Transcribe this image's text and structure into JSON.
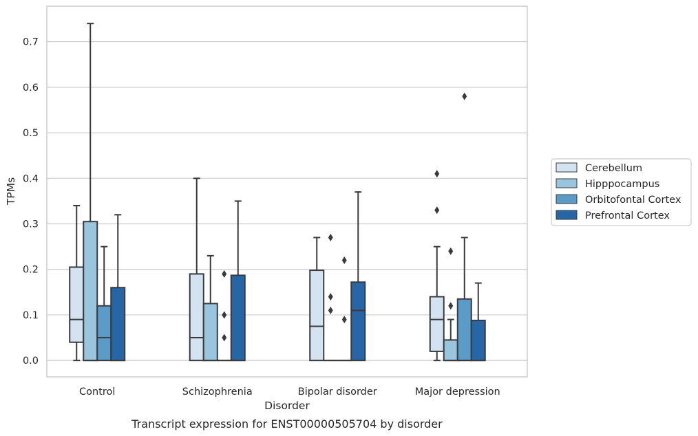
{
  "chart_data": {
    "type": "boxplot",
    "title": "",
    "caption": "Transcript expression for ENST00000505704 by disorder",
    "xlabel": "Disorder",
    "ylabel": "TPMs",
    "ylim": [
      -0.036,
      0.778
    ],
    "yticks": [
      0.0,
      0.1,
      0.2,
      0.3,
      0.4,
      0.5,
      0.6,
      0.7
    ],
    "ytick_labels": [
      "0.0",
      "0.1",
      "0.2",
      "0.3",
      "0.4",
      "0.5",
      "0.6",
      "0.7"
    ],
    "grid": "horizontal",
    "legend_position": "right",
    "categories": [
      "Control",
      "Schizophrenia",
      "Bipolar disorder",
      "Major depression"
    ],
    "series": [
      {
        "name": "Cerebellum",
        "color": "#d4e3f2",
        "boxes": [
          {
            "q1": 0.04,
            "median": 0.09,
            "q3": 0.205,
            "whislo": 0.0,
            "whishi": 0.34,
            "fliers": []
          },
          {
            "q1": 0.0,
            "median": 0.05,
            "q3": 0.19,
            "whislo": 0.0,
            "whishi": 0.4,
            "fliers": []
          },
          {
            "q1": 0.0,
            "median": 0.075,
            "q3": 0.198,
            "whislo": 0.0,
            "whishi": 0.27,
            "fliers": []
          },
          {
            "q1": 0.02,
            "median": 0.09,
            "q3": 0.14,
            "whislo": 0.0,
            "whishi": 0.25,
            "fliers": [
              0.33,
              0.41
            ]
          }
        ]
      },
      {
        "name": "Hipppocampus",
        "color": "#9ac5de",
        "boxes": [
          {
            "q1": 0.0,
            "median": 0.0,
            "q3": 0.305,
            "whislo": 0.0,
            "whishi": 0.74,
            "fliers": []
          },
          {
            "q1": 0.0,
            "median": 0.0,
            "q3": 0.125,
            "whislo": 0.0,
            "whishi": 0.23,
            "fliers": []
          },
          {
            "q1": 0.0,
            "median": 0.0,
            "q3": 0.0,
            "whislo": 0.0,
            "whishi": 0.0,
            "fliers": [
              0.11,
              0.14,
              0.27
            ]
          },
          {
            "q1": 0.0,
            "median": 0.0,
            "q3": 0.045,
            "whislo": 0.0,
            "whishi": 0.09,
            "fliers": [
              0.12,
              0.24
            ]
          }
        ]
      },
      {
        "name": "Orbitofontal Cortex",
        "color": "#5b9bc8",
        "boxes": [
          {
            "q1": 0.0,
            "median": 0.05,
            "q3": 0.12,
            "whislo": 0.0,
            "whishi": 0.25,
            "fliers": []
          },
          {
            "q1": 0.0,
            "median": 0.0,
            "q3": 0.0,
            "whislo": 0.0,
            "whishi": 0.0,
            "fliers": [
              0.05,
              0.1,
              0.19
            ]
          },
          {
            "q1": 0.0,
            "median": 0.0,
            "q3": 0.0,
            "whislo": 0.0,
            "whishi": 0.0,
            "fliers": [
              0.09,
              0.22
            ]
          },
          {
            "q1": 0.0,
            "median": 0.0,
            "q3": 0.135,
            "whislo": 0.0,
            "whishi": 0.27,
            "fliers": [
              0.58
            ]
          }
        ]
      },
      {
        "name": "Prefrontal Cortex",
        "color": "#2666a6",
        "boxes": [
          {
            "q1": 0.0,
            "median": 0.0,
            "q3": 0.16,
            "whislo": 0.0,
            "whishi": 0.32,
            "fliers": []
          },
          {
            "q1": 0.0,
            "median": 0.0,
            "q3": 0.187,
            "whislo": 0.0,
            "whishi": 0.35,
            "fliers": []
          },
          {
            "q1": 0.0,
            "median": 0.11,
            "q3": 0.172,
            "whislo": 0.0,
            "whishi": 0.37,
            "fliers": []
          },
          {
            "q1": 0.0,
            "median": 0.0,
            "q3": 0.088,
            "whislo": 0.0,
            "whishi": 0.17,
            "fliers": []
          }
        ]
      }
    ]
  }
}
